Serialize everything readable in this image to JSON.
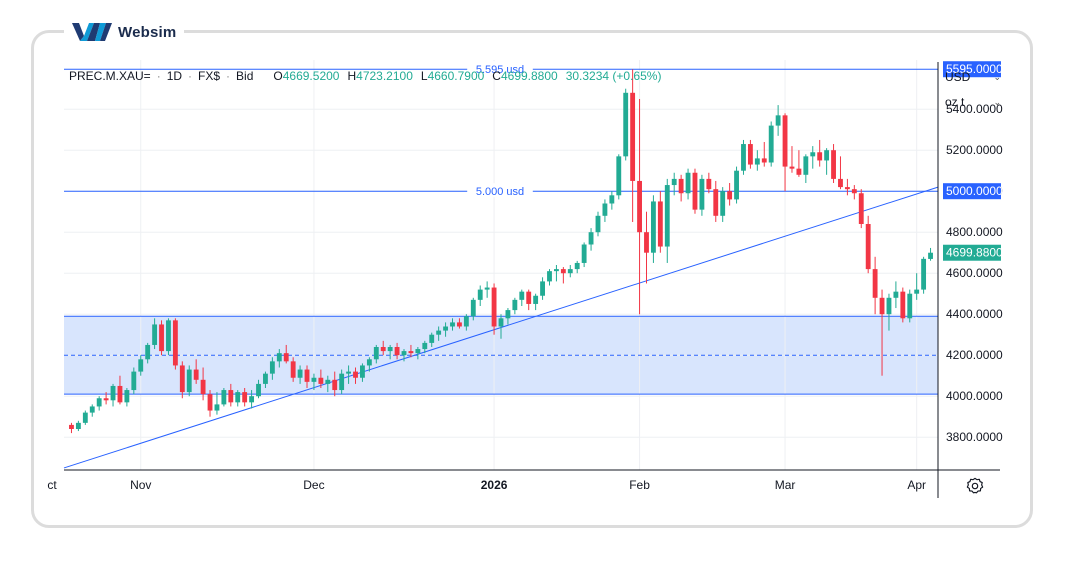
{
  "brand": {
    "name": "Websim"
  },
  "header": {
    "symbol": "PREC.M.XAU=",
    "interval": "1D",
    "source": "FX$",
    "price_type": "Bid",
    "open_label": "O",
    "open": "4669.5200",
    "high_label": "H",
    "high": "4723.2100",
    "low_label": "L",
    "low": "4660.7900",
    "close_label": "C",
    "close": "4699.8800",
    "change": "30.3234 (+0.65%)"
  },
  "controls": {
    "currency": "USD",
    "unit": "oz t"
  },
  "colors": {
    "up": "#22ab94",
    "down": "#f23645",
    "line": "#2962ff",
    "zone": "#d4e2fd",
    "axis": "#131722"
  },
  "chart_data": {
    "type": "candlestick",
    "ylim": [
      3640,
      5640
    ],
    "y_ticks": [
      "3800.0000",
      "4000.0000",
      "4200.0000",
      "4400.0000",
      "4600.0000",
      "4800.0000",
      "5000.0000",
      "5200.0000",
      "5400.0000"
    ],
    "x_labels": [
      "ct",
      "Nov",
      "Dec",
      "2026",
      "Feb",
      "Mar",
      "Apr"
    ],
    "horizontal_lines": [
      {
        "value": 5595,
        "label": "5.595 usd",
        "badge": "5595.0000"
      },
      {
        "value": 5000,
        "label": "5.000 usd",
        "badge": "5000.0000"
      }
    ],
    "zone": {
      "top": 4390,
      "mid": 4200,
      "bottom": 4010
    },
    "last_price_badge": "4699.8800",
    "candles": [
      [
        3860,
        3870,
        3820,
        3840
      ],
      [
        3840,
        3880,
        3830,
        3870
      ],
      [
        3870,
        3930,
        3860,
        3920
      ],
      [
        3920,
        3960,
        3900,
        3950
      ],
      [
        3950,
        4000,
        3930,
        3990
      ],
      [
        3990,
        4020,
        3960,
        3980
      ],
      [
        3980,
        4060,
        3950,
        4050
      ],
      [
        4050,
        4100,
        3960,
        3970
      ],
      [
        3970,
        4040,
        3950,
        4030
      ],
      [
        4030,
        4140,
        4010,
        4120
      ],
      [
        4120,
        4200,
        4100,
        4180
      ],
      [
        4180,
        4260,
        4160,
        4250
      ],
      [
        4250,
        4380,
        4230,
        4350
      ],
      [
        4350,
        4370,
        4200,
        4220
      ],
      [
        4220,
        4380,
        4200,
        4370
      ],
      [
        4370,
        4380,
        4130,
        4150
      ],
      [
        4150,
        4170,
        3990,
        4020
      ],
      [
        4020,
        4150,
        4000,
        4130
      ],
      [
        4130,
        4180,
        4060,
        4080
      ],
      [
        4080,
        4140,
        3980,
        4010
      ],
      [
        4010,
        4030,
        3900,
        3930
      ],
      [
        3930,
        4020,
        3910,
        3960
      ],
      [
        3960,
        4040,
        3950,
        4030
      ],
      [
        4030,
        4060,
        3950,
        3970
      ],
      [
        3970,
        4030,
        3950,
        4020
      ],
      [
        4020,
        4040,
        3950,
        3970
      ],
      [
        3970,
        4030,
        3940,
        4000
      ],
      [
        4000,
        4080,
        3990,
        4060
      ],
      [
        4060,
        4120,
        4040,
        4110
      ],
      [
        4110,
        4190,
        4080,
        4170
      ],
      [
        4170,
        4230,
        4140,
        4210
      ],
      [
        4210,
        4250,
        4160,
        4170
      ],
      [
        4170,
        4190,
        4070,
        4090
      ],
      [
        4090,
        4150,
        4060,
        4130
      ],
      [
        4130,
        4150,
        4040,
        4070
      ],
      [
        4070,
        4110,
        4030,
        4090
      ],
      [
        4090,
        4130,
        4040,
        4060
      ],
      [
        4060,
        4100,
        4020,
        4080
      ],
      [
        4080,
        4120,
        4000,
        4030
      ],
      [
        4030,
        4130,
        4010,
        4110
      ],
      [
        4110,
        4150,
        4060,
        4120
      ],
      [
        4120,
        4140,
        4060,
        4090
      ],
      [
        4090,
        4160,
        4070,
        4150
      ],
      [
        4150,
        4190,
        4120,
        4180
      ],
      [
        4180,
        4250,
        4160,
        4240
      ],
      [
        4240,
        4270,
        4200,
        4220
      ],
      [
        4220,
        4250,
        4180,
        4240
      ],
      [
        4240,
        4260,
        4180,
        4200
      ],
      [
        4200,
        4230,
        4170,
        4220
      ],
      [
        4220,
        4250,
        4190,
        4210
      ],
      [
        4210,
        4240,
        4180,
        4230
      ],
      [
        4230,
        4270,
        4210,
        4260
      ],
      [
        4260,
        4310,
        4240,
        4300
      ],
      [
        4300,
        4340,
        4270,
        4320
      ],
      [
        4320,
        4360,
        4290,
        4340
      ],
      [
        4340,
        4380,
        4320,
        4360
      ],
      [
        4360,
        4380,
        4330,
        4340
      ],
      [
        4340,
        4400,
        4320,
        4390
      ],
      [
        4390,
        4480,
        4370,
        4470
      ],
      [
        4470,
        4540,
        4440,
        4520
      ],
      [
        4520,
        4560,
        4480,
        4530
      ],
      [
        4530,
        4550,
        4300,
        4340
      ],
      [
        4340,
        4400,
        4280,
        4380
      ],
      [
        4380,
        4430,
        4350,
        4420
      ],
      [
        4420,
        4480,
        4400,
        4470
      ],
      [
        4470,
        4520,
        4440,
        4510
      ],
      [
        4510,
        4520,
        4420,
        4450
      ],
      [
        4450,
        4500,
        4420,
        4490
      ],
      [
        4490,
        4580,
        4470,
        4560
      ],
      [
        4560,
        4620,
        4540,
        4610
      ],
      [
        4610,
        4640,
        4560,
        4620
      ],
      [
        4620,
        4630,
        4550,
        4600
      ],
      [
        4600,
        4640,
        4580,
        4620
      ],
      [
        4620,
        4660,
        4600,
        4650
      ],
      [
        4650,
        4750,
        4630,
        4740
      ],
      [
        4740,
        4820,
        4710,
        4800
      ],
      [
        4800,
        4900,
        4780,
        4880
      ],
      [
        4880,
        4960,
        4850,
        4940
      ],
      [
        4940,
        5000,
        4910,
        4980
      ],
      [
        4980,
        5180,
        4960,
        5170
      ],
      [
        5170,
        5500,
        5150,
        5480
      ],
      [
        5480,
        5595,
        4850,
        5050
      ],
      [
        5050,
        5450,
        4400,
        4800
      ],
      [
        4800,
        4900,
        4550,
        4700
      ],
      [
        4700,
        4980,
        4650,
        4950
      ],
      [
        4950,
        5000,
        4700,
        4730
      ],
      [
        4730,
        5060,
        4650,
        5030
      ],
      [
        5030,
        5090,
        4980,
        5060
      ],
      [
        5060,
        5080,
        4950,
        4990
      ],
      [
        4990,
        5110,
        4960,
        5090
      ],
      [
        5090,
        5110,
        4890,
        4910
      ],
      [
        4910,
        5080,
        4880,
        5060
      ],
      [
        5060,
        5090,
        4990,
        5010
      ],
      [
        5010,
        5050,
        4850,
        4880
      ],
      [
        4880,
        5020,
        4850,
        5000
      ],
      [
        5000,
        5040,
        4930,
        4960
      ],
      [
        4960,
        5120,
        4940,
        5100
      ],
      [
        5100,
        5250,
        5080,
        5230
      ],
      [
        5230,
        5250,
        5110,
        5130
      ],
      [
        5130,
        5200,
        5100,
        5160
      ],
      [
        5160,
        5240,
        5120,
        5140
      ],
      [
        5140,
        5340,
        5120,
        5320
      ],
      [
        5320,
        5420,
        5270,
        5370
      ],
      [
        5370,
        5380,
        5000,
        5120
      ],
      [
        5120,
        5220,
        5090,
        5110
      ],
      [
        5110,
        5200,
        5070,
        5080
      ],
      [
        5080,
        5180,
        5040,
        5170
      ],
      [
        5170,
        5220,
        5110,
        5190
      ],
      [
        5190,
        5250,
        5120,
        5150
      ],
      [
        5150,
        5210,
        5080,
        5200
      ],
      [
        5200,
        5230,
        5040,
        5060
      ],
      [
        5060,
        5170,
        5010,
        5020
      ],
      [
        5020,
        5060,
        4980,
        5010
      ],
      [
        5010,
        5030,
        4960,
        4990
      ],
      [
        4990,
        5010,
        4820,
        4840
      ],
      [
        4840,
        4880,
        4600,
        4620
      ],
      [
        4620,
        4680,
        4400,
        4480
      ],
      [
        4480,
        4520,
        4100,
        4400
      ],
      [
        4400,
        4500,
        4320,
        4480
      ],
      [
        4480,
        4560,
        4430,
        4510
      ],
      [
        4510,
        4530,
        4360,
        4380
      ],
      [
        4380,
        4520,
        4360,
        4500
      ],
      [
        4500,
        4600,
        4470,
        4520
      ],
      [
        4520,
        4680,
        4500,
        4670
      ],
      [
        4669.52,
        4723.21,
        4660.79,
        4699.88
      ]
    ]
  }
}
